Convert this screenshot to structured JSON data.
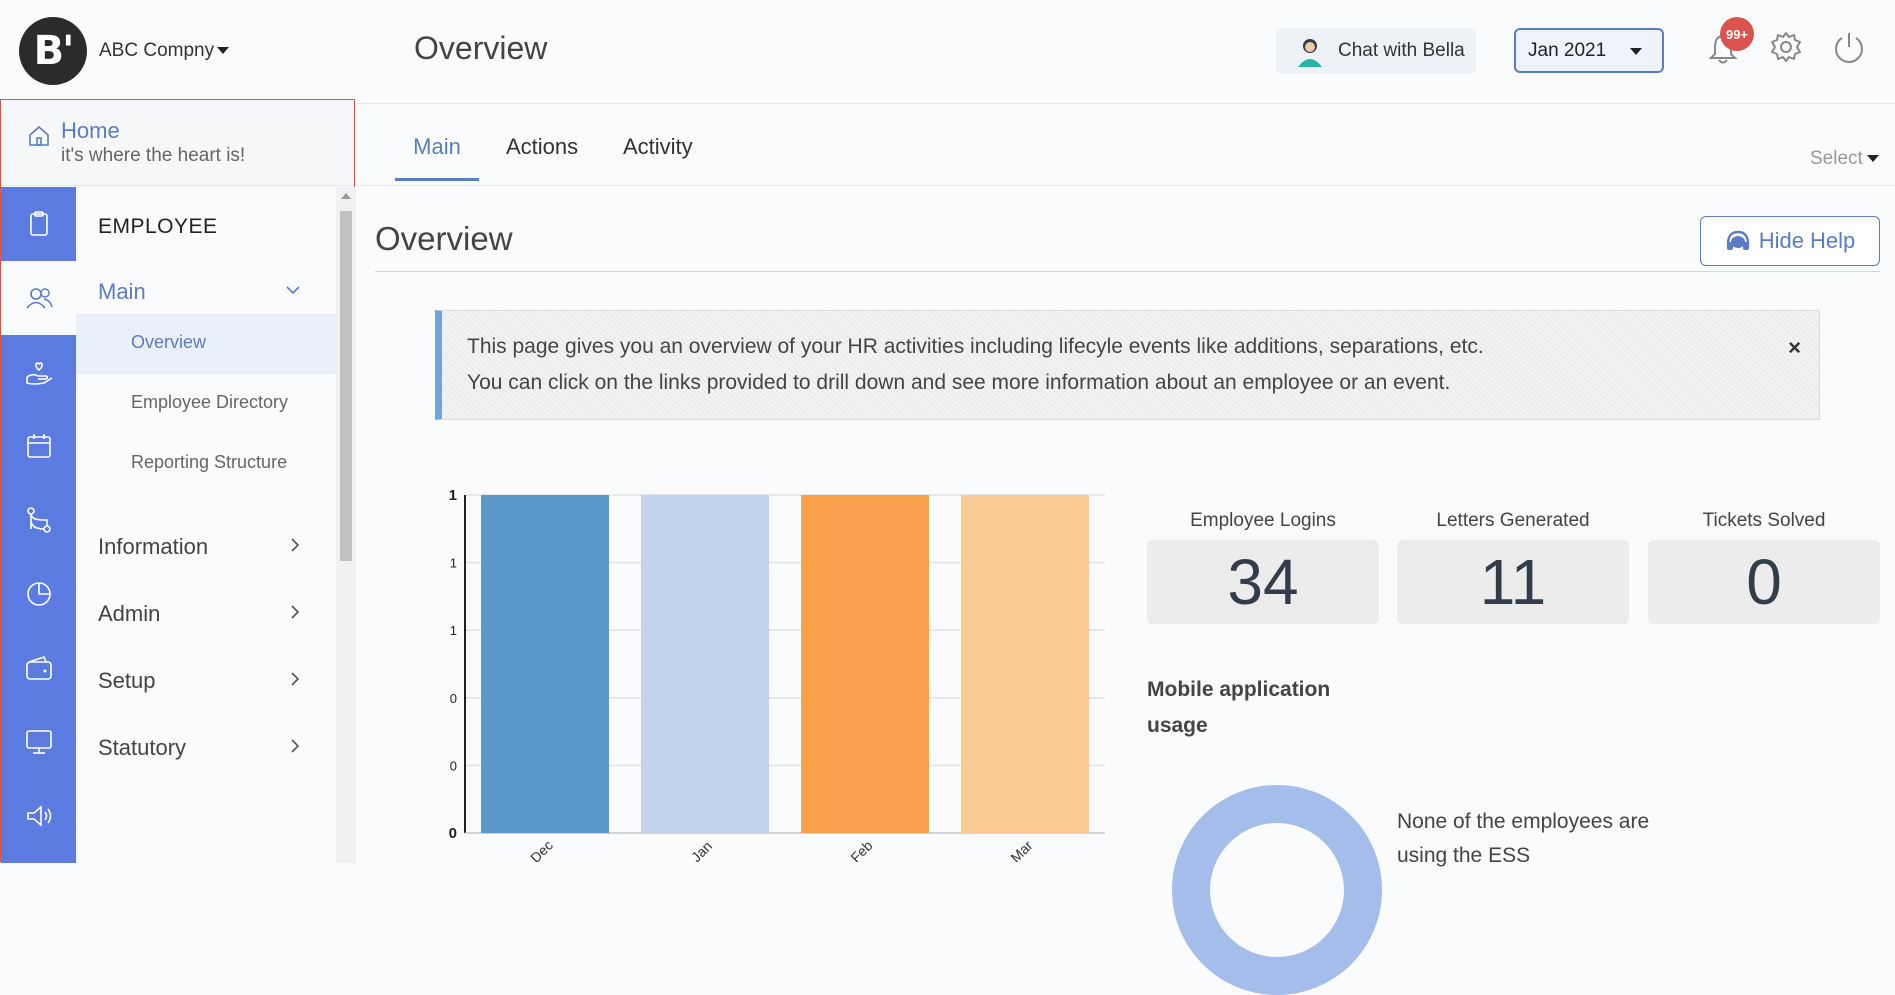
{
  "header": {
    "logo_text": "B'",
    "company": "ABC Compny",
    "page_title": "Overview",
    "chat_label": "Chat with Bella",
    "month": "Jan 2021",
    "notification_badge": "99+"
  },
  "sidebar": {
    "home_title": "Home",
    "home_subtitle": "it's where the heart is!",
    "rail_icons": [
      "clipboard-icon",
      "users-icon",
      "hand-heart-icon",
      "calendar-icon",
      "flow-icon",
      "pie-chart-icon",
      "wallet-icon",
      "monitor-icon",
      "megaphone-icon"
    ],
    "section": "EMPLOYEE",
    "main_group": "Main",
    "sub_items": [
      "Overview",
      "Employee Directory",
      "Reporting Structure"
    ],
    "groups": [
      "Information",
      "Admin",
      "Setup",
      "Statutory"
    ]
  },
  "tabs": [
    "Main",
    "Actions",
    "Activity"
  ],
  "select_label": "Select",
  "section_title": "Overview",
  "hide_help_label": "Hide Help",
  "info": {
    "line1": "This page gives you an overview of your HR activities including lifecyle events like additions, separations, etc.",
    "line2": "You can click on the links provided to drill down and see more information about an employee or an event.",
    "close": "×"
  },
  "chart_data": {
    "type": "bar",
    "categories": [
      "Dec",
      "Jan",
      "Feb",
      "Mar"
    ],
    "values": [
      1,
      1,
      1,
      1
    ],
    "colors": [
      "#5a98c9",
      "#c2d3ee",
      "#f8a04c",
      "#fbcb96"
    ],
    "ytick_labels": [
      "0",
      "0",
      "0",
      "1",
      "1",
      "1"
    ],
    "ylim": [
      0,
      1
    ],
    "grid": true
  },
  "stats": [
    {
      "label": "Employee Logins",
      "value": "34"
    },
    {
      "label": "Letters Generated",
      "value": "11"
    },
    {
      "label": "Tickets Solved",
      "value": "0"
    }
  ],
  "mobile": {
    "title": "Mobile application usage",
    "text": "None of the employees are using the ESS"
  }
}
